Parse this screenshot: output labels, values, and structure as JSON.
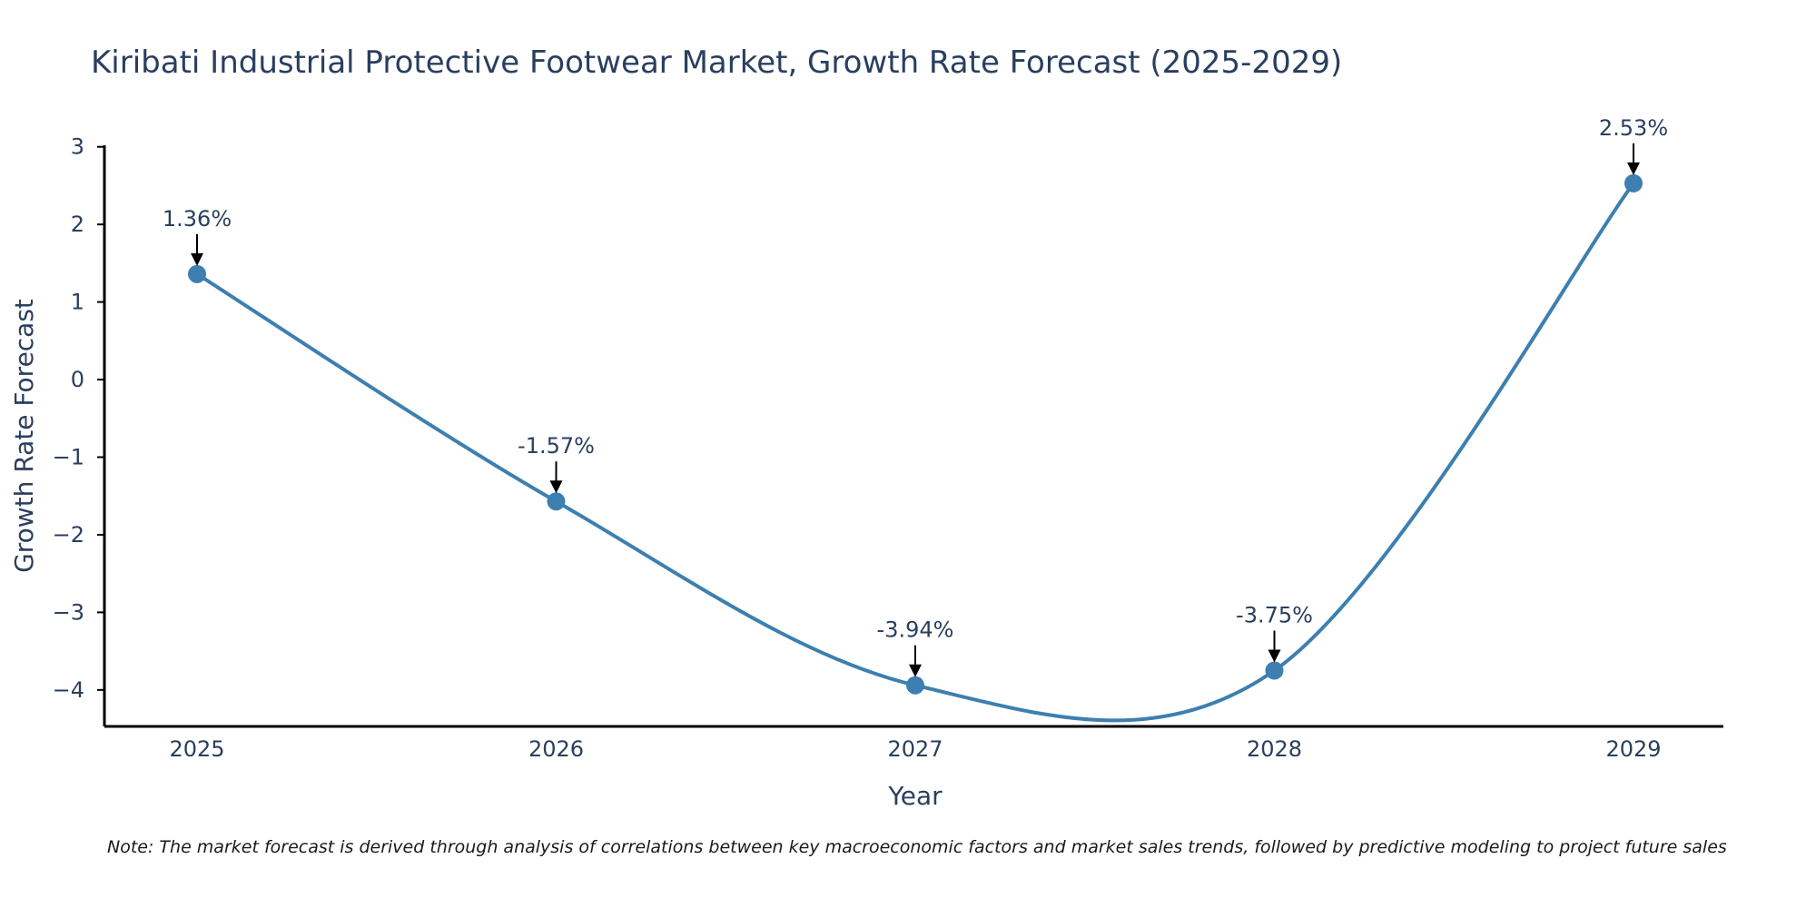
{
  "chart_data": {
    "type": "line",
    "title": "Kiribati Industrial Protective Footwear Market, Growth Rate Forecast (2025-2029)",
    "xlabel": "Year",
    "ylabel": "Growth Rate Forecast",
    "categories": [
      "2025",
      "2026",
      "2027",
      "2028",
      "2029"
    ],
    "values": [
      1.36,
      -1.57,
      -3.94,
      -3.75,
      2.53
    ],
    "data_labels": [
      "1.36%",
      "-1.57%",
      "-3.94%",
      "-3.75%",
      "2.53%"
    ],
    "yticks": [
      3,
      2,
      1,
      0,
      -1,
      -2,
      -3,
      -4
    ],
    "ytick_labels": [
      "3",
      "2",
      "1",
      "0",
      "−1",
      "−2",
      "−3",
      "−4"
    ],
    "ylim": [
      -4.47,
      3.02
    ],
    "line_shape": "spline",
    "grid": false,
    "line_color": "#3d7fb0",
    "marker_color": "#3d7fb0"
  },
  "note": "Note: The market forecast is derived through analysis of correlations between key macroeconomic factors and market sales trends, followed by predictive modeling to project future sales"
}
